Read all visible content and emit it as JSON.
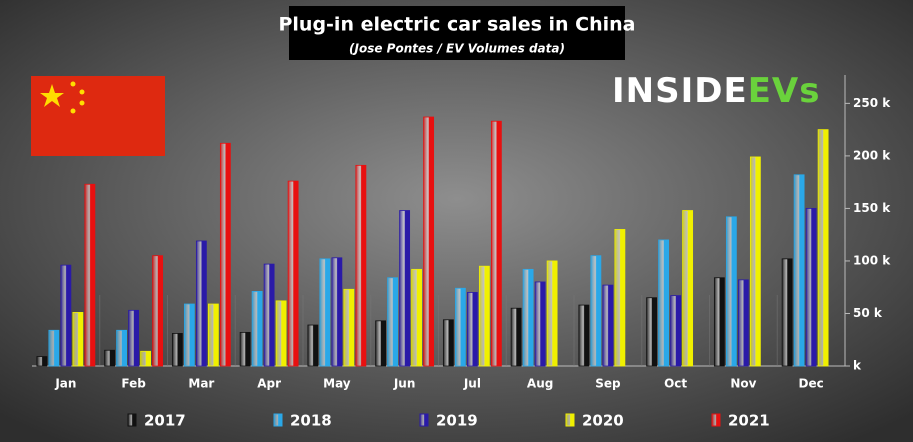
{
  "chart_data": {
    "type": "bar",
    "title": "Plug-in electric car sales in China",
    "subtitle": "(Jose Pontes / EV Volumes data)",
    "logo": [
      "INSIDE",
      "EVs"
    ],
    "categories": [
      "Jan",
      "Feb",
      "Mar",
      "Apr",
      "May",
      "Jun",
      "Jul",
      "Aug",
      "Sep",
      "Oct",
      "Nov",
      "Dec"
    ],
    "series": [
      {
        "name": "2017",
        "color": "#111111",
        "values": [
          9,
          15,
          31,
          32,
          39,
          43,
          44,
          55,
          58,
          65,
          84,
          102
        ]
      },
      {
        "name": "2018",
        "color": "#2aa8e8",
        "values": [
          34,
          34,
          59,
          71,
          102,
          84,
          74,
          92,
          105,
          120,
          142,
          182
        ]
      },
      {
        "name": "2019",
        "color": "#2a1aa8",
        "values": [
          96,
          53,
          119,
          97,
          103,
          148,
          70,
          80,
          77,
          67,
          82,
          150
        ]
      },
      {
        "name": "2020",
        "color": "#f0f000",
        "values": [
          51,
          14,
          59,
          62,
          73,
          92,
          95,
          100,
          130,
          148,
          199,
          225
        ]
      },
      {
        "name": "2021",
        "color": "#e81010",
        "values": [
          173,
          105,
          212,
          176,
          191,
          237,
          233,
          null,
          null,
          null,
          null,
          null
        ]
      }
    ],
    "ylim": [
      0,
      277
    ],
    "yticks": [
      {
        "value": 0,
        "label": "k"
      },
      {
        "value": 50,
        "label": "50 k"
      },
      {
        "value": 100,
        "label": "100 k"
      },
      {
        "value": 150,
        "label": "150 k"
      },
      {
        "value": 200,
        "label": "200 k"
      },
      {
        "value": 250,
        "label": "250 k"
      }
    ],
    "grid": false
  }
}
